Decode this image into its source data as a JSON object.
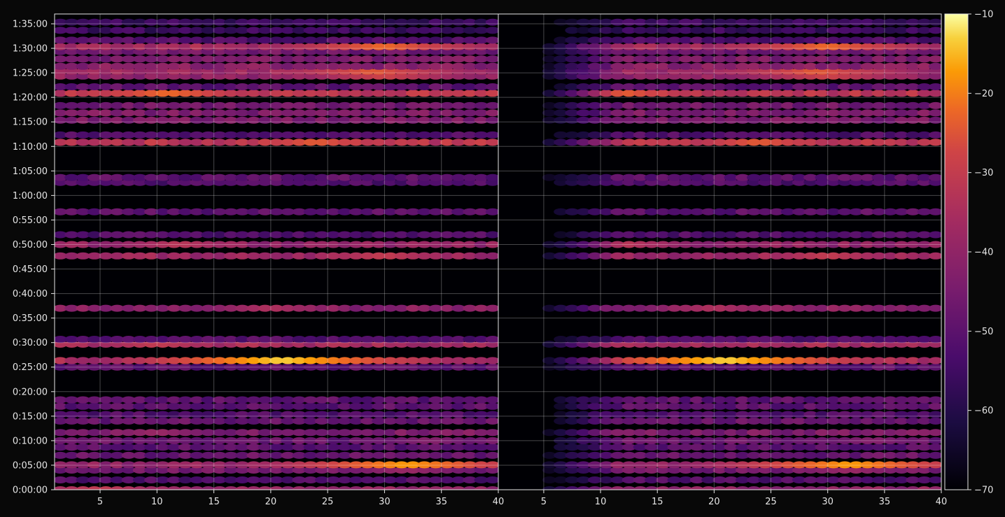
{
  "chart_data": {
    "type": "heatmap",
    "title": "",
    "xlabel": "",
    "ylabel": "",
    "colormap": "inferno",
    "background": "#080808",
    "grid": true,
    "colorbar": {
      "range": [
        -70,
        -10
      ],
      "ticks": [
        -70,
        -60,
        -50,
        -40,
        -30,
        -20,
        -10
      ],
      "tick_labels": [
        "−70",
        "−60",
        "−50",
        "−40",
        "−30",
        "−20",
        "−10"
      ],
      "placement": "right"
    },
    "y_axis": {
      "unit": "seconds",
      "range": [
        0,
        5820
      ],
      "ticks": [
        0,
        300,
        600,
        900,
        1200,
        1500,
        1800,
        2100,
        2400,
        2700,
        3000,
        3300,
        3600,
        3900,
        4200,
        4500,
        4800,
        5100,
        5400,
        5700
      ],
      "tick_labels": [
        "0:00:00",
        "0:05:00",
        "0:10:00",
        "0:15:00",
        "0:20:00",
        "0:25:00",
        "0:30:00",
        "0:35:00",
        "0:40:00",
        "0:45:00",
        "0:50:00",
        "0:55:00",
        "1:00:00",
        "1:05:00",
        "1:10:00",
        "1:15:00",
        "1:20:00",
        "1:25:00",
        "1:30:00",
        "1:35:00"
      ]
    },
    "panels": [
      {
        "x_range": [
          1,
          40
        ],
        "ticks": [
          5,
          10,
          15,
          20,
          25,
          30,
          35,
          40
        ],
        "tick_labels": [
          "5",
          "10",
          "15",
          "20",
          "25",
          "30",
          "35",
          "40"
        ]
      },
      {
        "x_range": [
          1,
          40
        ],
        "ticks": [
          5,
          10,
          15,
          20,
          25,
          30,
          35,
          40
        ],
        "tick_labels": [
          "5",
          "10",
          "15",
          "20",
          "25",
          "30",
          "35",
          "40"
        ]
      }
    ],
    "x_cells": 39,
    "bands": [
      {
        "t": 0,
        "level": -40,
        "hot": 5,
        "hot_level": -30
      },
      {
        "t": 120,
        "level": -52,
        "hot": 0,
        "hot_level": -52
      },
      {
        "t": 240,
        "level": -46,
        "hot": 32,
        "hot_level": -38
      },
      {
        "t": 305,
        "level": -40,
        "hot": 32,
        "hot_level": -17
      },
      {
        "t": 420,
        "level": -48,
        "hot": 0,
        "hot_level": -48
      },
      {
        "t": 520,
        "level": -50,
        "hot": 0,
        "hot_level": -50
      },
      {
        "t": 600,
        "level": -48,
        "hot": 34,
        "hot_level": -42
      },
      {
        "t": 700,
        "level": -44,
        "hot": 10,
        "hot_level": -38
      },
      {
        "t": 840,
        "level": -48,
        "hot": 0,
        "hot_level": -48
      },
      {
        "t": 920,
        "level": -52,
        "hot": 0,
        "hot_level": -52
      },
      {
        "t": 1020,
        "level": -50,
        "hot": 0,
        "hot_level": -50
      },
      {
        "t": 1100,
        "level": -50,
        "hot": 0,
        "hot_level": -50
      },
      {
        "t": 1500,
        "level": -50,
        "hot": 0,
        "hot_level": -50
      },
      {
        "t": 1580,
        "level": -36,
        "hot": 21,
        "hot_level": -13
      },
      {
        "t": 1780,
        "level": -36,
        "hot": 10,
        "hot_level": -30
      },
      {
        "t": 1840,
        "level": -52,
        "hot": 0,
        "hot_level": -52
      },
      {
        "t": 2220,
        "level": -42,
        "hot": 20,
        "hot_level": -34
      },
      {
        "t": 2860,
        "level": -38,
        "hot": 30,
        "hot_level": -30
      },
      {
        "t": 3000,
        "level": -40,
        "hot": 12,
        "hot_level": -32
      },
      {
        "t": 3120,
        "level": -52,
        "hot": 0,
        "hot_level": -52
      },
      {
        "t": 3400,
        "level": -50,
        "hot": 0,
        "hot_level": -50
      },
      {
        "t": 3760,
        "level": -52,
        "hot": 0,
        "hot_level": -52
      },
      {
        "t": 3820,
        "level": -50,
        "hot": 0,
        "hot_level": -50
      },
      {
        "t": 4250,
        "level": -32,
        "hot": 24,
        "hot_level": -24
      },
      {
        "t": 4340,
        "level": -52,
        "hot": 0,
        "hot_level": -52
      },
      {
        "t": 4520,
        "level": -44,
        "hot": 0,
        "hot_level": -44
      },
      {
        "t": 4610,
        "level": -44,
        "hot": 0,
        "hot_level": -44
      },
      {
        "t": 4700,
        "level": -46,
        "hot": 0,
        "hot_level": -46
      },
      {
        "t": 4850,
        "level": -32,
        "hot": 11,
        "hot_level": -22
      },
      {
        "t": 4930,
        "level": -50,
        "hot": 0,
        "hot_level": -50
      },
      {
        "t": 5060,
        "level": -40,
        "hot": 30,
        "hot_level": -28
      },
      {
        "t": 5120,
        "level": -38,
        "hot": 29,
        "hot_level": -24
      },
      {
        "t": 5180,
        "level": -42,
        "hot": 0,
        "hot_level": -42
      },
      {
        "t": 5270,
        "level": -44,
        "hot": 0,
        "hot_level": -44
      },
      {
        "t": 5360,
        "level": -46,
        "hot": 0,
        "hot_level": -46
      },
      {
        "t": 5420,
        "level": -36,
        "hot": 30,
        "hot_level": -22
      },
      {
        "t": 5500,
        "level": -52,
        "hot": 0,
        "hot_level": -52
      },
      {
        "t": 5620,
        "level": -56,
        "hot": 0,
        "hot_level": -56
      },
      {
        "t": 5720,
        "level": -56,
        "hot": 0,
        "hot_level": -56
      }
    ]
  }
}
